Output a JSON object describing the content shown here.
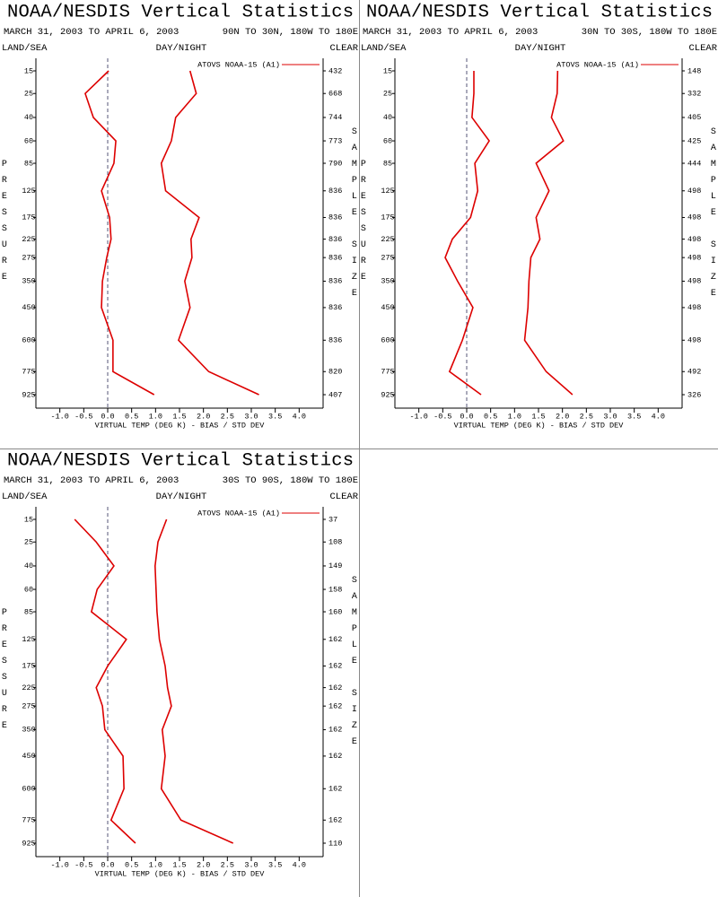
{
  "chart_data": [
    {
      "type": "line",
      "title": "NOAA/NESDIS Vertical Statistics",
      "subtitle": "MARCH 31, 2003 TO APRIL 6, 2003",
      "region": "90N TO 30N, 180W TO 180E",
      "left_label": "LAND/SEA",
      "center_label": "DAY/NIGHT",
      "right_label": "CLEAR",
      "y_label": "PRESSURE",
      "y2_label": "SAMPLE SIZE",
      "x_label": "VIRTUAL TEMP (DEG K) - BIAS / STD DEV",
      "y": [
        15,
        25,
        40,
        60,
        85,
        125,
        175,
        225,
        275,
        350,
        450,
        600,
        775,
        925
      ],
      "ylim": [
        15,
        925
      ],
      "y_scale_exponent": 0.286,
      "y_inverted": true,
      "sample_sizes": [
        432,
        668,
        744,
        773,
        790,
        836,
        836,
        836,
        836,
        836,
        836,
        836,
        820,
        407
      ],
      "xlim": [
        -1.5,
        4.5
      ],
      "xticks": [
        {
          "value": -1,
          "label": "-1.0"
        },
        -0.5,
        {
          "value": 0,
          "label": "0.0"
        },
        0.5,
        {
          "value": 1,
          "label": "1.0"
        },
        1.5,
        {
          "value": 2,
          "label": "2.0"
        },
        2.5,
        {
          "value": 3,
          "label": "3.0"
        },
        3.5,
        {
          "value": 4,
          "label": "4.0"
        }
      ],
      "zero_line": true,
      "series": [
        {
          "name": "ATOVS NOAA-15 (A1)",
          "color": "#dd0000",
          "bias": [
            0.02,
            -0.47,
            -0.3,
            0.17,
            0.13,
            -0.13,
            0.04,
            0.07,
            -0.02,
            -0.11,
            -0.13,
            0.11,
            0.11,
            0.97
          ],
          "std_dev": [
            1.72,
            1.85,
            1.42,
            1.33,
            1.12,
            1.21,
            1.91,
            1.74,
            1.76,
            1.61,
            1.72,
            1.48,
            2.11,
            3.16
          ]
        }
      ]
    },
    {
      "type": "line",
      "title": "NOAA/NESDIS Vertical Statistics",
      "subtitle": "MARCH 31, 2003 TO APRIL 6, 2003",
      "region": "30N TO 30S, 180W TO 180E",
      "left_label": "LAND/SEA",
      "center_label": "DAY/NIGHT",
      "right_label": "CLEAR",
      "y_label": "PRESSURE",
      "y2_label": "SAMPLE SIZE",
      "x_label": "VIRTUAL TEMP (DEG K) - BIAS / STD DEV",
      "y": [
        15,
        25,
        40,
        60,
        85,
        125,
        175,
        225,
        275,
        350,
        450,
        600,
        775,
        925
      ],
      "ylim": [
        15,
        925
      ],
      "y_scale_exponent": 0.286,
      "y_inverted": true,
      "sample_sizes": [
        148,
        332,
        405,
        425,
        444,
        498,
        498,
        498,
        498,
        498,
        498,
        498,
        492,
        326
      ],
      "xlim": [
        -1.5,
        4.5
      ],
      "xticks": [
        {
          "value": -1,
          "label": "-1.0"
        },
        -0.5,
        {
          "value": 0,
          "label": "0.0"
        },
        0.5,
        {
          "value": 1,
          "label": "1.0"
        },
        1.5,
        {
          "value": 2,
          "label": "2.0"
        },
        2.5,
        {
          "value": 3,
          "label": "3.0"
        },
        3.5,
        {
          "value": 4,
          "label": "4.0"
        }
      ],
      "zero_line": true,
      "series": [
        {
          "name": "ATOVS NOAA-15 (A1)",
          "color": "#dd0000",
          "bias": [
            0.15,
            0.15,
            0.11,
            0.47,
            0.17,
            0.23,
            0.08,
            -0.3,
            -0.45,
            -0.19,
            0.13,
            -0.09,
            -0.36,
            0.3
          ],
          "std_dev": [
            1.9,
            1.89,
            1.77,
            2.02,
            1.45,
            1.72,
            1.45,
            1.53,
            1.34,
            1.3,
            1.28,
            1.21,
            1.66,
            2.21
          ]
        }
      ]
    },
    {
      "type": "line",
      "title": "NOAA/NESDIS Vertical Statistics",
      "subtitle": "MARCH 31, 2003 TO APRIL 6, 2003",
      "region": "30S TO 90S, 180W TO 180E",
      "left_label": "LAND/SEA",
      "center_label": "DAY/NIGHT",
      "right_label": "CLEAR",
      "y_label": "PRESSURE",
      "y2_label": "SAMPLE SIZE",
      "x_label": "VIRTUAL TEMP (DEG K) - BIAS / STD DEV",
      "y": [
        15,
        25,
        40,
        60,
        85,
        125,
        175,
        225,
        275,
        350,
        450,
        600,
        775,
        925
      ],
      "ylim": [
        15,
        925
      ],
      "y_scale_exponent": 0.286,
      "y_inverted": true,
      "sample_sizes": [
        37,
        108,
        149,
        158,
        160,
        162,
        162,
        162,
        162,
        162,
        162,
        162,
        162,
        110
      ],
      "xlim": [
        -1.5,
        4.5
      ],
      "xticks": [
        {
          "value": -1,
          "label": "-1.0"
        },
        -0.5,
        {
          "value": 0,
          "label": "0.0"
        },
        0.5,
        {
          "value": 1,
          "label": "1.0"
        },
        1.5,
        {
          "value": 2,
          "label": "2.0"
        },
        2.5,
        {
          "value": 3,
          "label": "3.0"
        },
        3.5,
        {
          "value": 4,
          "label": "4.0"
        }
      ],
      "zero_line": true,
      "series": [
        {
          "name": "ATOVS NOAA-15 (A1)",
          "color": "#dd0000",
          "bias": [
            -0.69,
            -0.24,
            0.13,
            -0.22,
            -0.34,
            0.39,
            0.0,
            -0.24,
            -0.11,
            -0.06,
            0.32,
            0.34,
            0.07,
            0.58
          ],
          "std_dev": [
            1.23,
            1.05,
            0.99,
            1.01,
            1.03,
            1.08,
            1.2,
            1.25,
            1.33,
            1.14,
            1.2,
            1.12,
            1.53,
            2.62
          ]
        }
      ]
    }
  ]
}
